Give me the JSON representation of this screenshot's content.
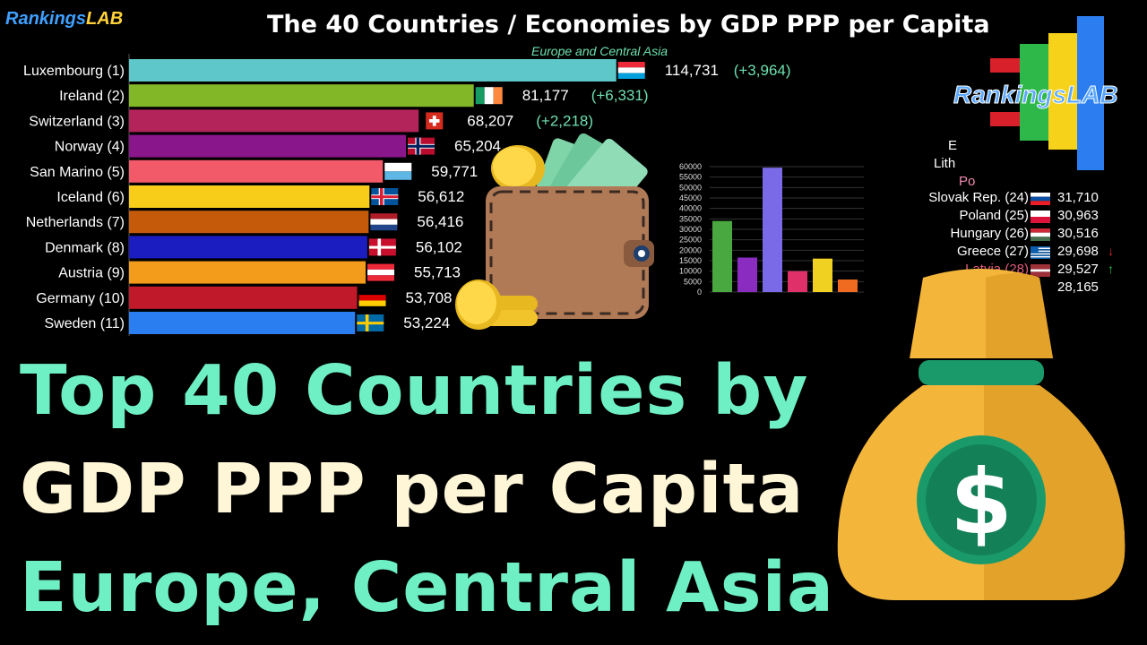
{
  "brand": {
    "rankings": "Rankings",
    "lab": "LAB"
  },
  "chart_data": {
    "type": "bar",
    "title": "The 40 Countries / Economies by GDP PPP per Capita",
    "subtitle": "Europe and Central Asia",
    "orientation": "horizontal",
    "xlim": [
      0,
      115000
    ],
    "bars": [
      {
        "label": "Luxembourg (1)",
        "value": 114731,
        "value_label": "114,731",
        "change": "(+3,964)",
        "color": "#5ec7c9",
        "flag": "lu"
      },
      {
        "label": "Ireland (2)",
        "value": 81177,
        "value_label": "81,177",
        "change": "(+6,331)",
        "color": "#82b828",
        "flag": "ie"
      },
      {
        "label": "Switzerland (3)",
        "value": 68207,
        "value_label": "68,207",
        "change": "(+2,218)",
        "color": "#b3245a",
        "flag": "ch"
      },
      {
        "label": "Norway (4)",
        "value": 65204,
        "value_label": "65,204",
        "change": "",
        "color": "#8a168c",
        "flag": "no"
      },
      {
        "label": "San Marino (5)",
        "value": 59771,
        "value_label": "59,771",
        "change": "",
        "color": "#f25a6a",
        "flag": "sm"
      },
      {
        "label": "Iceland (6)",
        "value": 56612,
        "value_label": "56,612",
        "change": "",
        "color": "#f7cd1a",
        "flag": "is"
      },
      {
        "label": "Netherlands (7)",
        "value": 56416,
        "value_label": "56,416",
        "change": "",
        "color": "#c45a0a",
        "flag": "nl"
      },
      {
        "label": "Denmark (8)",
        "value": 56102,
        "value_label": "56,102",
        "change": "",
        "color": "#1b1dc0",
        "flag": "dk"
      },
      {
        "label": "Austria (9)",
        "value": 55713,
        "value_label": "55,713",
        "change": "",
        "color": "#f39b1a",
        "flag": "at"
      },
      {
        "label": "Germany (10)",
        "value": 53708,
        "value_label": "53,708",
        "change": "",
        "color": "#c01a2a",
        "flag": "de"
      },
      {
        "label": "Sweden (11)",
        "value": 53224,
        "value_label": "53,224",
        "change": "",
        "color": "#2a7ef0",
        "flag": "se"
      }
    ],
    "right_list": [
      {
        "label": "Slovak Rep. (24)",
        "value_label": "31,710",
        "flag": "sk",
        "trend": ""
      },
      {
        "label": "Poland (25)",
        "value_label": "30,963",
        "flag": "pl",
        "trend": ""
      },
      {
        "label": "Hungary (26)",
        "value_label": "30,516",
        "flag": "hu",
        "trend": ""
      },
      {
        "label": "Greece (27)",
        "value_label": "29,698",
        "flag": "gr",
        "trend": "down"
      },
      {
        "label": "Latvia (28)",
        "value_label": "29,527",
        "flag": "lv",
        "trend": "up"
      },
      {
        "label": "",
        "value_label": "28,165",
        "flag": "",
        "trend": ""
      }
    ],
    "right_list_partial": [
      "E",
      "Lith",
      "Po"
    ],
    "mini_chart": {
      "type": "bar",
      "ylim": [
        0,
        60000
      ],
      "yticks": [
        "0",
        "5000",
        "10000",
        "15000",
        "20000",
        "25000",
        "30000",
        "35000",
        "40000",
        "45000",
        "50000",
        "55000",
        "60000"
      ],
      "values": [
        34000,
        16500,
        59500,
        10000,
        16000,
        6000
      ],
      "colors": [
        "#4aa840",
        "#8a2cc0",
        "#7a6ae8",
        "#e0306a",
        "#f0d020",
        "#f06a20"
      ]
    }
  },
  "headline": {
    "line1": "Top 40 Countries by",
    "line2": "GDP PPP per Capita",
    "line3": "Europe, Central Asia"
  },
  "logo": {
    "text": "RankingsLAB",
    "colors": [
      "#d8202a",
      "#2fb84a",
      "#f7d21a",
      "#2c7ef0"
    ]
  },
  "icons": {
    "money_bag": "money-bag-icon",
    "wallet": "wallet-icon",
    "coin": "coin-icon",
    "dollar": "dollar-sign-icon"
  }
}
